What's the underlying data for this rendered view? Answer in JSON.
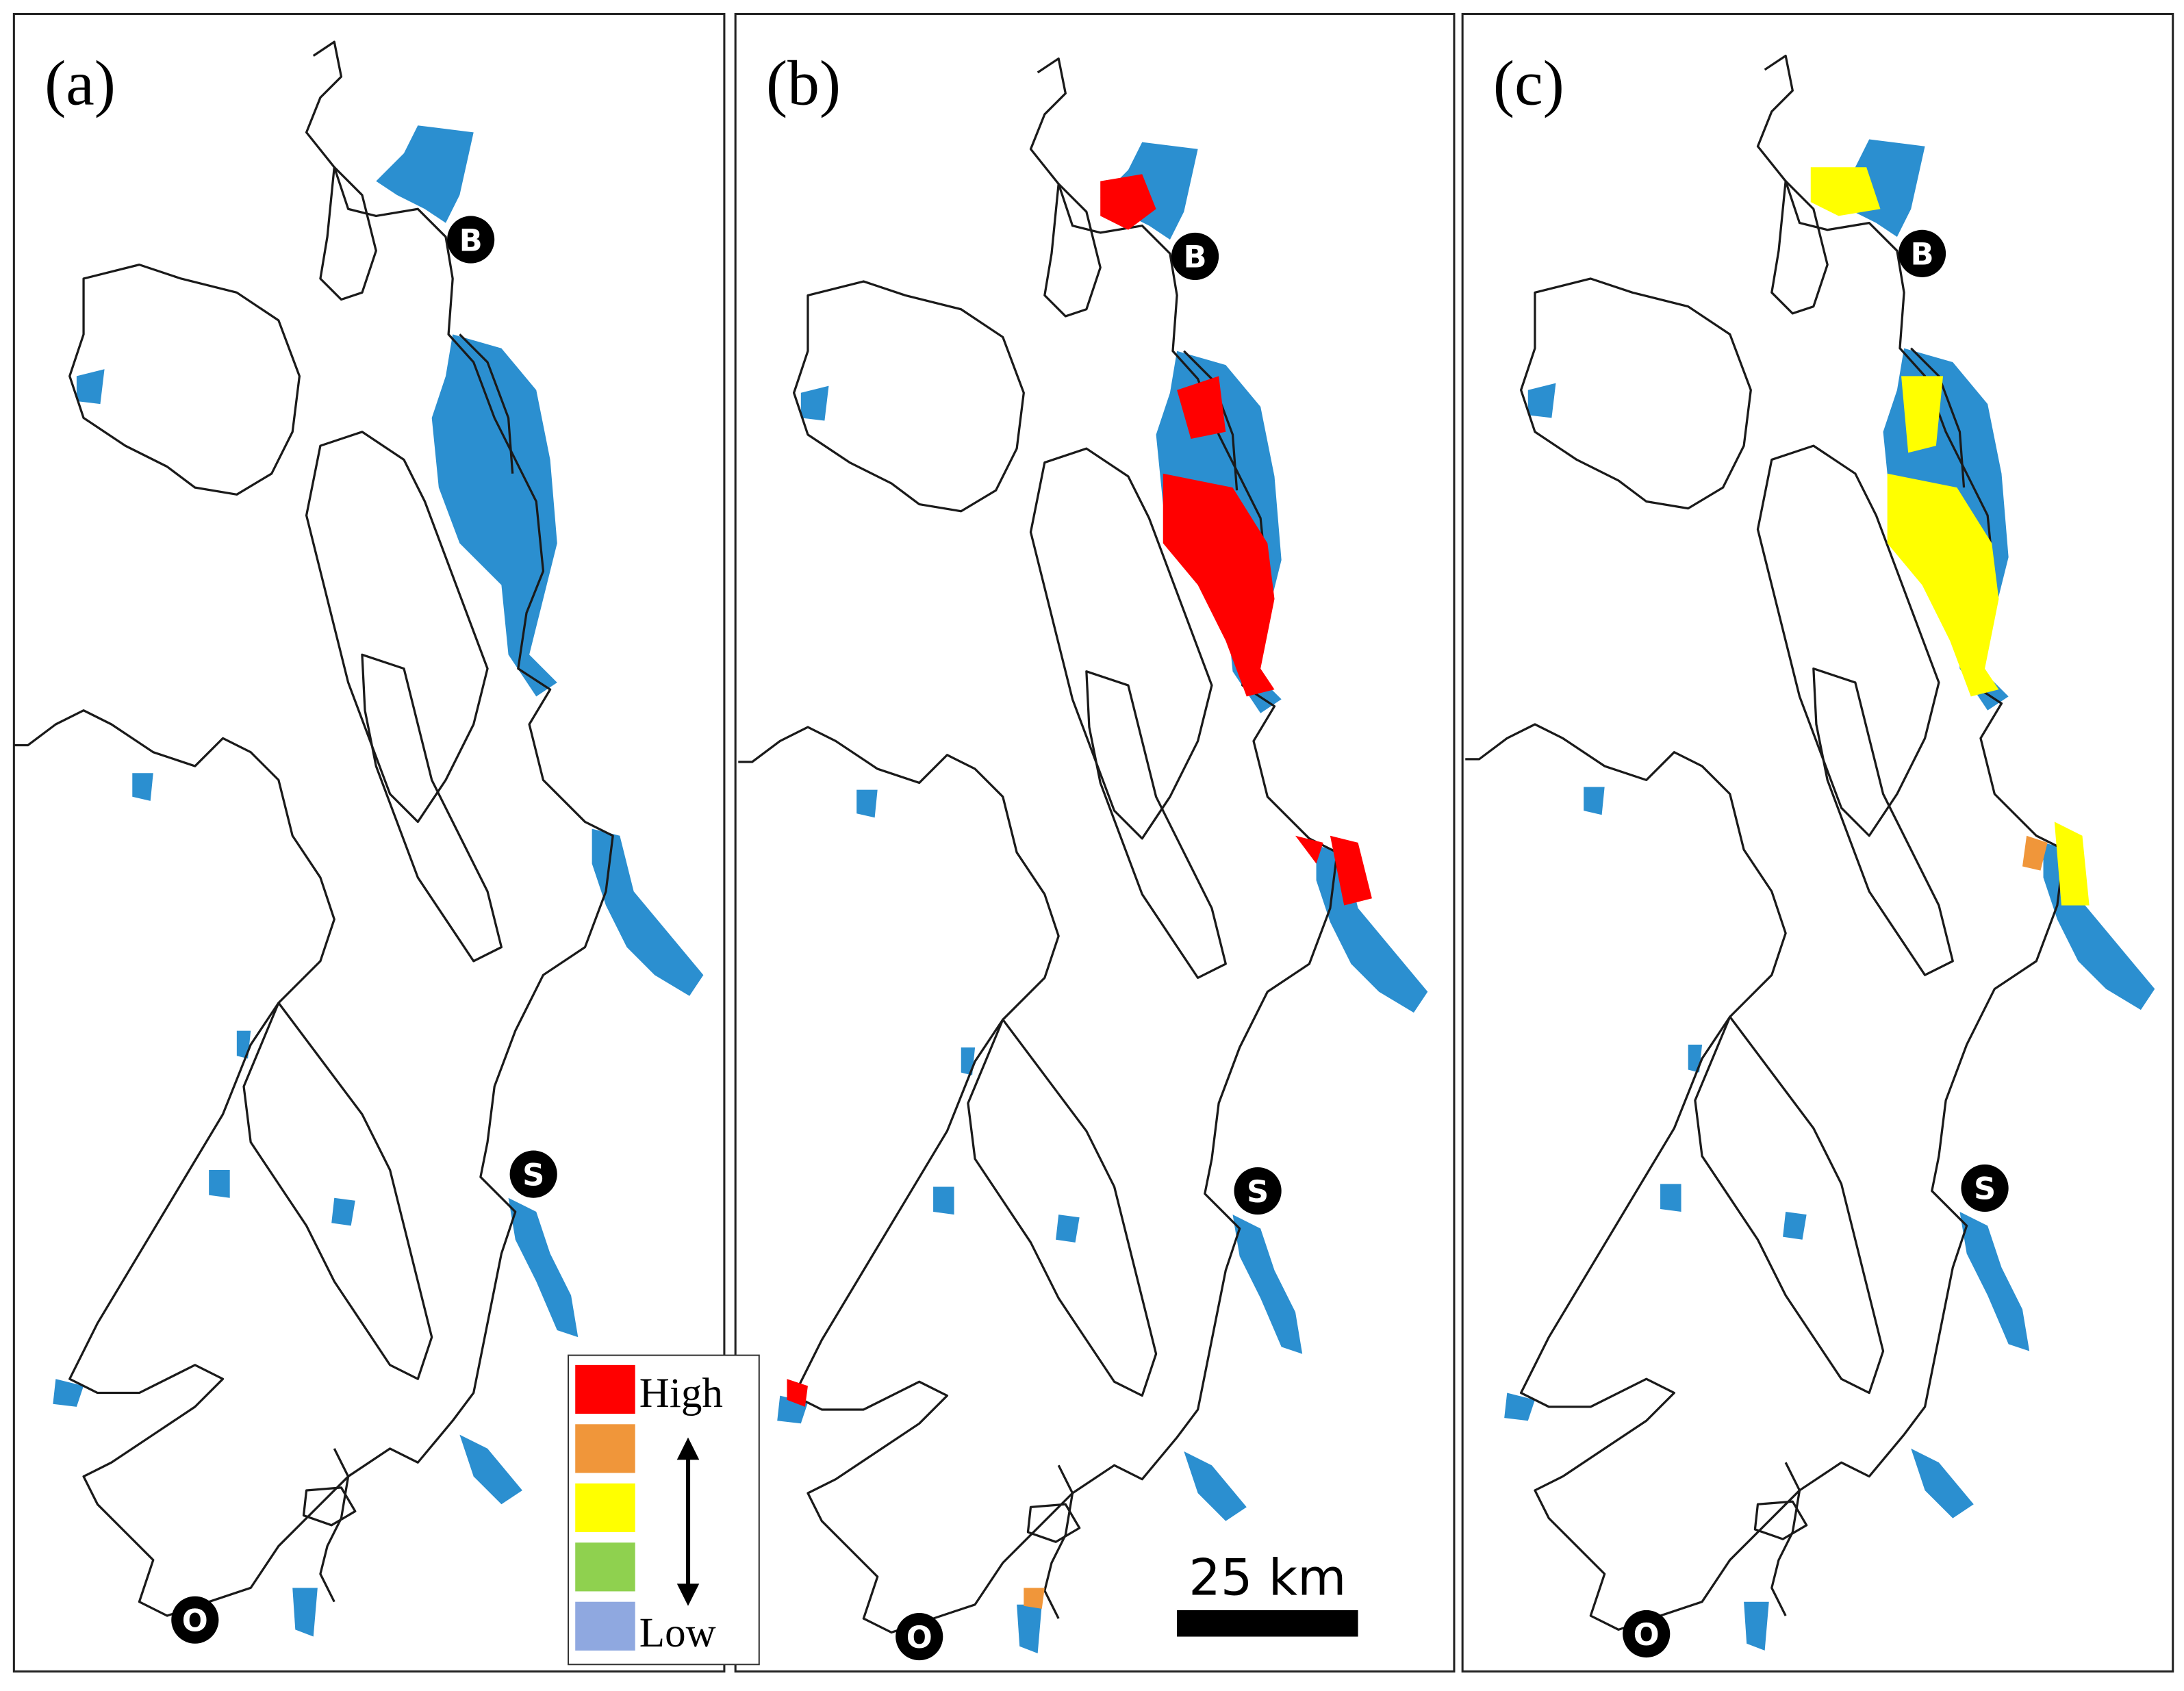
{
  "panels": [
    {
      "label": "(a)",
      "markers": [
        "B",
        "S",
        "O"
      ]
    },
    {
      "label": "(b)",
      "markers": [
        "B",
        "S",
        "O"
      ]
    },
    {
      "label": "(c)",
      "markers": [
        "B",
        "S",
        "O"
      ]
    }
  ],
  "legend": {
    "high_label": "High",
    "low_label": "Low",
    "colors": [
      "#ff0000",
      "#f0963a",
      "#ffff00",
      "#8fd14f",
      "#8fa8e0"
    ]
  },
  "scale_bar": "25 km"
}
